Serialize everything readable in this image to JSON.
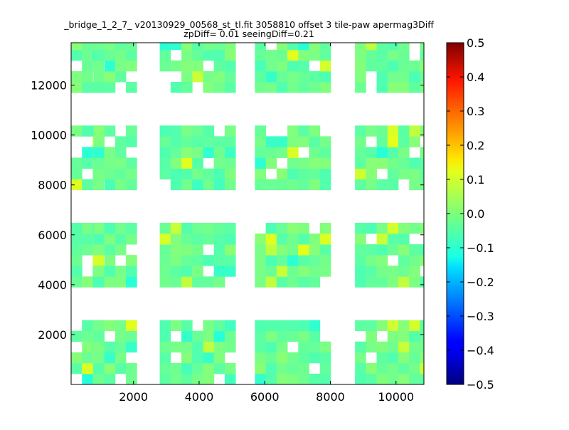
{
  "chart_data": {
    "type": "heatmap",
    "title": "_bridge_1_2_7_ v20130929_00568_st_tl.fit 3058810 offset 3 tile-paw apermag3Diff",
    "subtitle": "zpDiff= 0.01 seeingDiff=0.21",
    "xlim": [
      100,
      10850
    ],
    "ylim": [
      0,
      13700
    ],
    "xticks": [
      2000,
      4000,
      6000,
      8000,
      10000
    ],
    "yticks": [
      2000,
      4000,
      6000,
      8000,
      10000,
      12000
    ],
    "colorbar": {
      "vmin": -0.5,
      "vmax": 0.5,
      "ticks": [
        -0.5,
        -0.4,
        -0.3,
        -0.2,
        -0.1,
        0.0,
        0.1,
        0.2,
        0.3,
        0.4,
        0.5
      ],
      "colormap": "jet"
    },
    "grid": false,
    "cell": {
      "width": 330,
      "height": 430
    },
    "columns": [
      {
        "x0": 100,
        "nx": 3
      },
      {
        "x0": 780,
        "nx": 4
      },
      {
        "x0": 2800,
        "nx": 7
      },
      {
        "x0": 5700,
        "nx": 7
      },
      {
        "x0": 8750,
        "nx": 7
      }
    ],
    "row_blocks": [
      {
        "y0": 0,
        "ny": 6
      },
      {
        "y0": 3900,
        "ny": 6
      },
      {
        "y0": 7800,
        "ny": 6
      },
      {
        "y0": 11700,
        "ny": 5
      }
    ],
    "value_range": [
      -0.09,
      0.1
    ],
    "typical_value": -0.02
  }
}
